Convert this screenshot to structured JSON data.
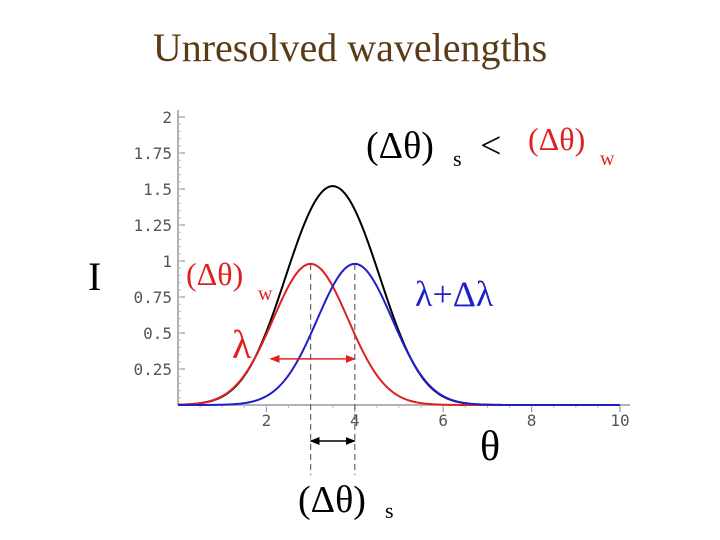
{
  "slide": {
    "title": "Unresolved wavelengths"
  },
  "annotations": {
    "y_axis_symbol": "I",
    "x_axis_symbol": "θ",
    "lambda": "λ",
    "lambda_plus": "λ+Δλ",
    "dtheta_open": "(Δθ)",
    "sub_s": "s",
    "sub_w": "w",
    "less_than": "<"
  },
  "colors": {
    "sum": "#000000",
    "lambda": "#e02020",
    "lambda_plus": "#1f1fc8",
    "title": "#5b3a16",
    "axis_text": "#555555"
  },
  "chart_data": {
    "type": "line",
    "xlim": [
      0,
      10
    ],
    "ylim": [
      0,
      2
    ],
    "x_ticks": [
      2,
      4,
      6,
      8,
      10
    ],
    "y_ticks": [
      0.25,
      0.5,
      0.75,
      1,
      1.25,
      1.5,
      1.75,
      2
    ],
    "x_tick_labels": [
      "2",
      "4",
      "6",
      "8",
      "10"
    ],
    "y_tick_labels": [
      "0.25",
      "0.5",
      "0.75",
      "1",
      "1.25",
      "1.5",
      "1.75",
      "2"
    ],
    "series": [
      {
        "role": "lambda",
        "color": "#e02020",
        "peak_x": 3,
        "peak_y": 0.98,
        "sigma": 0.85
      },
      {
        "role": "lambda_plus",
        "color": "#1f1fc8",
        "peak_x": 4,
        "peak_y": 0.98,
        "sigma": 0.85
      },
      {
        "role": "sum",
        "color": "#000000",
        "peak_x": 3.5,
        "peak_y": 1.52
      }
    ],
    "dashed_markers_x": [
      3,
      4
    ],
    "separation_arrow_x": [
      3,
      4
    ]
  }
}
